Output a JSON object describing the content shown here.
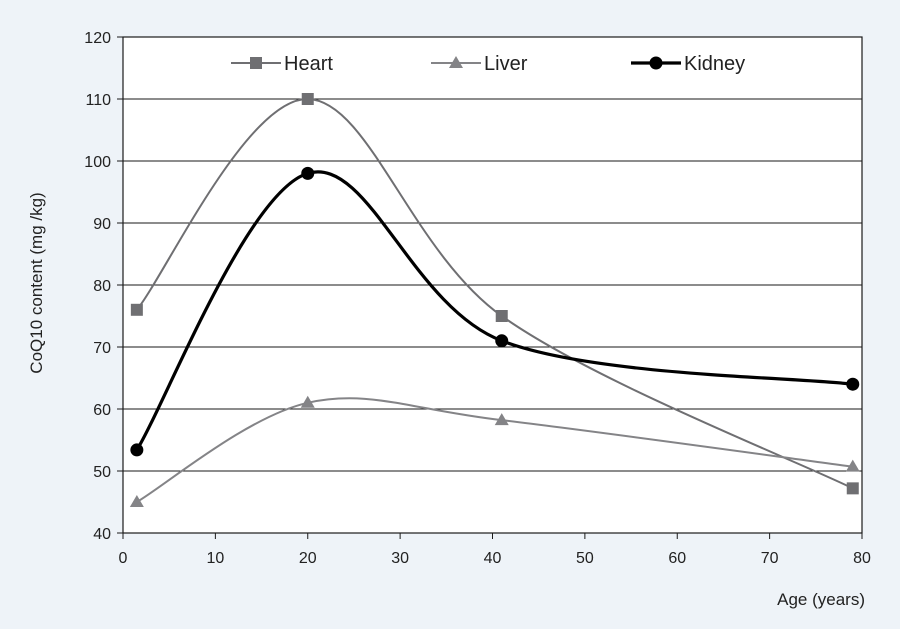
{
  "chart_data": {
    "type": "line",
    "title": "",
    "xlabel": "Age (years)",
    "ylabel": "CoQ10 content (mg /kg)",
    "xlim": [
      0,
      80
    ],
    "ylim": [
      40,
      120
    ],
    "xticks": [
      0,
      10,
      20,
      30,
      40,
      50,
      60,
      70,
      80
    ],
    "yticks": [
      40,
      50,
      60,
      70,
      80,
      90,
      100,
      110,
      120
    ],
    "grid": "horizontal",
    "legend_position": "top",
    "series": [
      {
        "name": "Heart",
        "marker": "square",
        "color": "#6f6f72",
        "line_width": 2,
        "x": [
          1.5,
          20,
          41,
          79
        ],
        "y": [
          76,
          110,
          75,
          47.2
        ]
      },
      {
        "name": "Liver",
        "marker": "triangle",
        "color": "#848487",
        "line_width": 2,
        "x": [
          1.5,
          20,
          41,
          79
        ],
        "y": [
          45,
          61,
          58.2,
          50.7
        ]
      },
      {
        "name": "Kidney",
        "marker": "circle",
        "color": "#000000",
        "line_width": 3.2,
        "x": [
          1.5,
          20,
          41,
          79
        ],
        "y": [
          53.4,
          98,
          71,
          64
        ]
      }
    ]
  }
}
